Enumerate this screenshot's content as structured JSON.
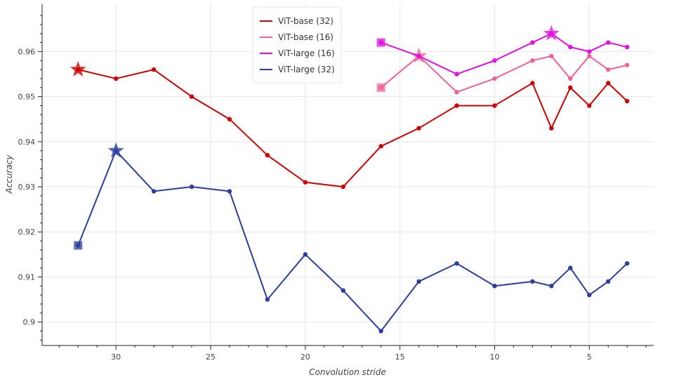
{
  "chart_data": {
    "type": "line",
    "xlabel": "Convolution stride",
    "ylabel": "Accuracy",
    "x_axis_reversed": true,
    "xlim": [
      33.9,
      1.6
    ],
    "ylim": [
      0.8948,
      0.9705
    ],
    "x_ticks": [
      30,
      25,
      20,
      15,
      10,
      5
    ],
    "x_tick_labels": [
      "30",
      "25",
      "20",
      "15",
      "10",
      "5"
    ],
    "y_ticks": [
      0.9,
      0.91,
      0.92,
      0.93,
      0.94,
      0.95,
      0.96
    ],
    "y_tick_labels": [
      "0.9",
      "0.91",
      "0.92",
      "0.93",
      "0.94",
      "0.95",
      "0.96"
    ],
    "grid": true,
    "legend_position": "top-center",
    "series": [
      {
        "name": "ViT-base (32)",
        "color": "#cc0000",
        "x": [
          32,
          30,
          28,
          26,
          24,
          22,
          20,
          18,
          16,
          14,
          12,
          10,
          8,
          7,
          6,
          5,
          4,
          3
        ],
        "values": [
          0.956,
          0.954,
          0.956,
          0.95,
          0.945,
          0.937,
          0.931,
          0.93,
          0.939,
          0.943,
          0.948,
          0.948,
          0.953,
          0.943,
          0.952,
          0.948,
          0.953,
          0.949
        ],
        "best_marker": {
          "shape": "star",
          "x": 32,
          "y": 0.956
        },
        "start_marker": null
      },
      {
        "name": "ViT-base (16)",
        "color": "#f0609a",
        "x": [
          16,
          14,
          12,
          10,
          8,
          7,
          6,
          5,
          4,
          3
        ],
        "values": [
          0.952,
          0.959,
          0.951,
          0.954,
          0.958,
          0.959,
          0.954,
          0.959,
          0.956,
          0.957
        ],
        "best_marker": {
          "shape": "star",
          "x": 14,
          "y": 0.959
        },
        "start_marker": {
          "shape": "square",
          "x": 16,
          "y": 0.952
        }
      },
      {
        "name": "ViT-large (16)",
        "color": "#e010e0",
        "x": [
          16,
          14,
          12,
          10,
          8,
          7,
          6,
          5,
          4,
          3
        ],
        "values": [
          0.962,
          0.959,
          0.955,
          0.958,
          0.962,
          0.964,
          0.961,
          0.96,
          0.962,
          0.961
        ],
        "best_marker": {
          "shape": "star",
          "x": 7,
          "y": 0.964
        },
        "start_marker": {
          "shape": "square",
          "x": 16,
          "y": 0.962
        }
      },
      {
        "name": "ViT-large (32)",
        "color": "#2b3d9e",
        "x": [
          32,
          30,
          28,
          26,
          24,
          22,
          20,
          18,
          16,
          14,
          12,
          10,
          8,
          7,
          6,
          5,
          4,
          3
        ],
        "values": [
          0.917,
          0.938,
          0.929,
          0.93,
          0.929,
          0.905,
          0.915,
          0.907,
          0.898,
          0.909,
          0.913,
          0.908,
          0.909,
          0.908,
          0.912,
          0.906,
          0.909,
          0.913
        ],
        "best_marker": {
          "shape": "star",
          "x": 30,
          "y": 0.938
        },
        "start_marker": {
          "shape": "square",
          "x": 32,
          "y": 0.917
        }
      }
    ]
  }
}
